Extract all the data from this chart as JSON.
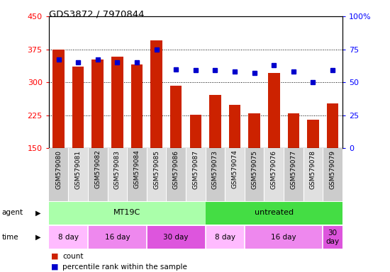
{
  "title": "GDS3872 / 7970844",
  "samples": [
    "GSM579080",
    "GSM579081",
    "GSM579082",
    "GSM579083",
    "GSM579084",
    "GSM579085",
    "GSM579086",
    "GSM579087",
    "GSM579073",
    "GSM579074",
    "GSM579075",
    "GSM579076",
    "GSM579077",
    "GSM579078",
    "GSM579079"
  ],
  "counts": [
    375,
    335,
    352,
    358,
    340,
    395,
    293,
    226,
    272,
    248,
    230,
    322,
    230,
    215,
    252
  ],
  "percentiles": [
    67,
    65,
    67,
    65,
    65,
    75,
    60,
    59,
    59,
    58,
    57,
    63,
    58,
    50,
    59
  ],
  "ylim_left": [
    150,
    450
  ],
  "ylim_right": [
    0,
    100
  ],
  "yticks_left": [
    150,
    225,
    300,
    375,
    450
  ],
  "yticks_right": [
    0,
    25,
    50,
    75,
    100
  ],
  "bar_color": "#cc2200",
  "dot_color": "#0000cc",
  "agent_groups": [
    {
      "label": "MT19C",
      "start": 0,
      "end": 8,
      "color": "#aaffaa"
    },
    {
      "label": "untreated",
      "start": 8,
      "end": 15,
      "color": "#44dd44"
    }
  ],
  "time_groups": [
    {
      "label": "8 day",
      "start": 0,
      "end": 2,
      "color": "#ffbbff"
    },
    {
      "label": "16 day",
      "start": 2,
      "end": 5,
      "color": "#ee88ee"
    },
    {
      "label": "30 day",
      "start": 5,
      "end": 8,
      "color": "#dd55dd"
    },
    {
      "label": "8 day",
      "start": 8,
      "end": 10,
      "color": "#ffbbff"
    },
    {
      "label": "16 day",
      "start": 10,
      "end": 14,
      "color": "#ee88ee"
    },
    {
      "label": "30\nday",
      "start": 14,
      "end": 15,
      "color": "#dd55dd"
    }
  ]
}
